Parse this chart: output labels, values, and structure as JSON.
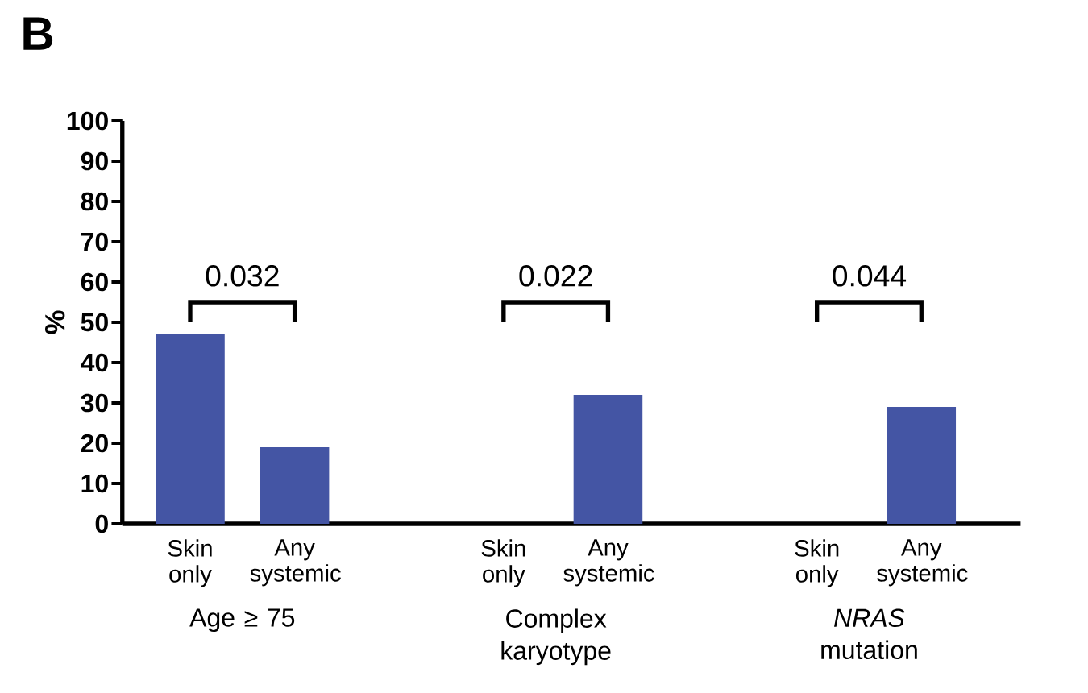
{
  "chart_data": {
    "type": "bar",
    "title": "B",
    "ylabel": "%",
    "categories": [
      "Skin only",
      "Any systemic",
      "Skin only",
      "Any systemic",
      "Skin only",
      "Any systemic"
    ],
    "values": [
      47,
      19,
      0,
      32,
      0,
      29
    ],
    "color": "#4455a4",
    "ylim": [
      0,
      100
    ],
    "yticks": [
      0,
      10,
      20,
      30,
      40,
      50,
      60,
      70,
      80,
      90,
      100
    ],
    "annotations": [
      "0.032",
      "0.022",
      "0.044",
      "Age ≥ 75",
      "Complex karyotype",
      "*NRAS* mutation"
    ]
  }
}
